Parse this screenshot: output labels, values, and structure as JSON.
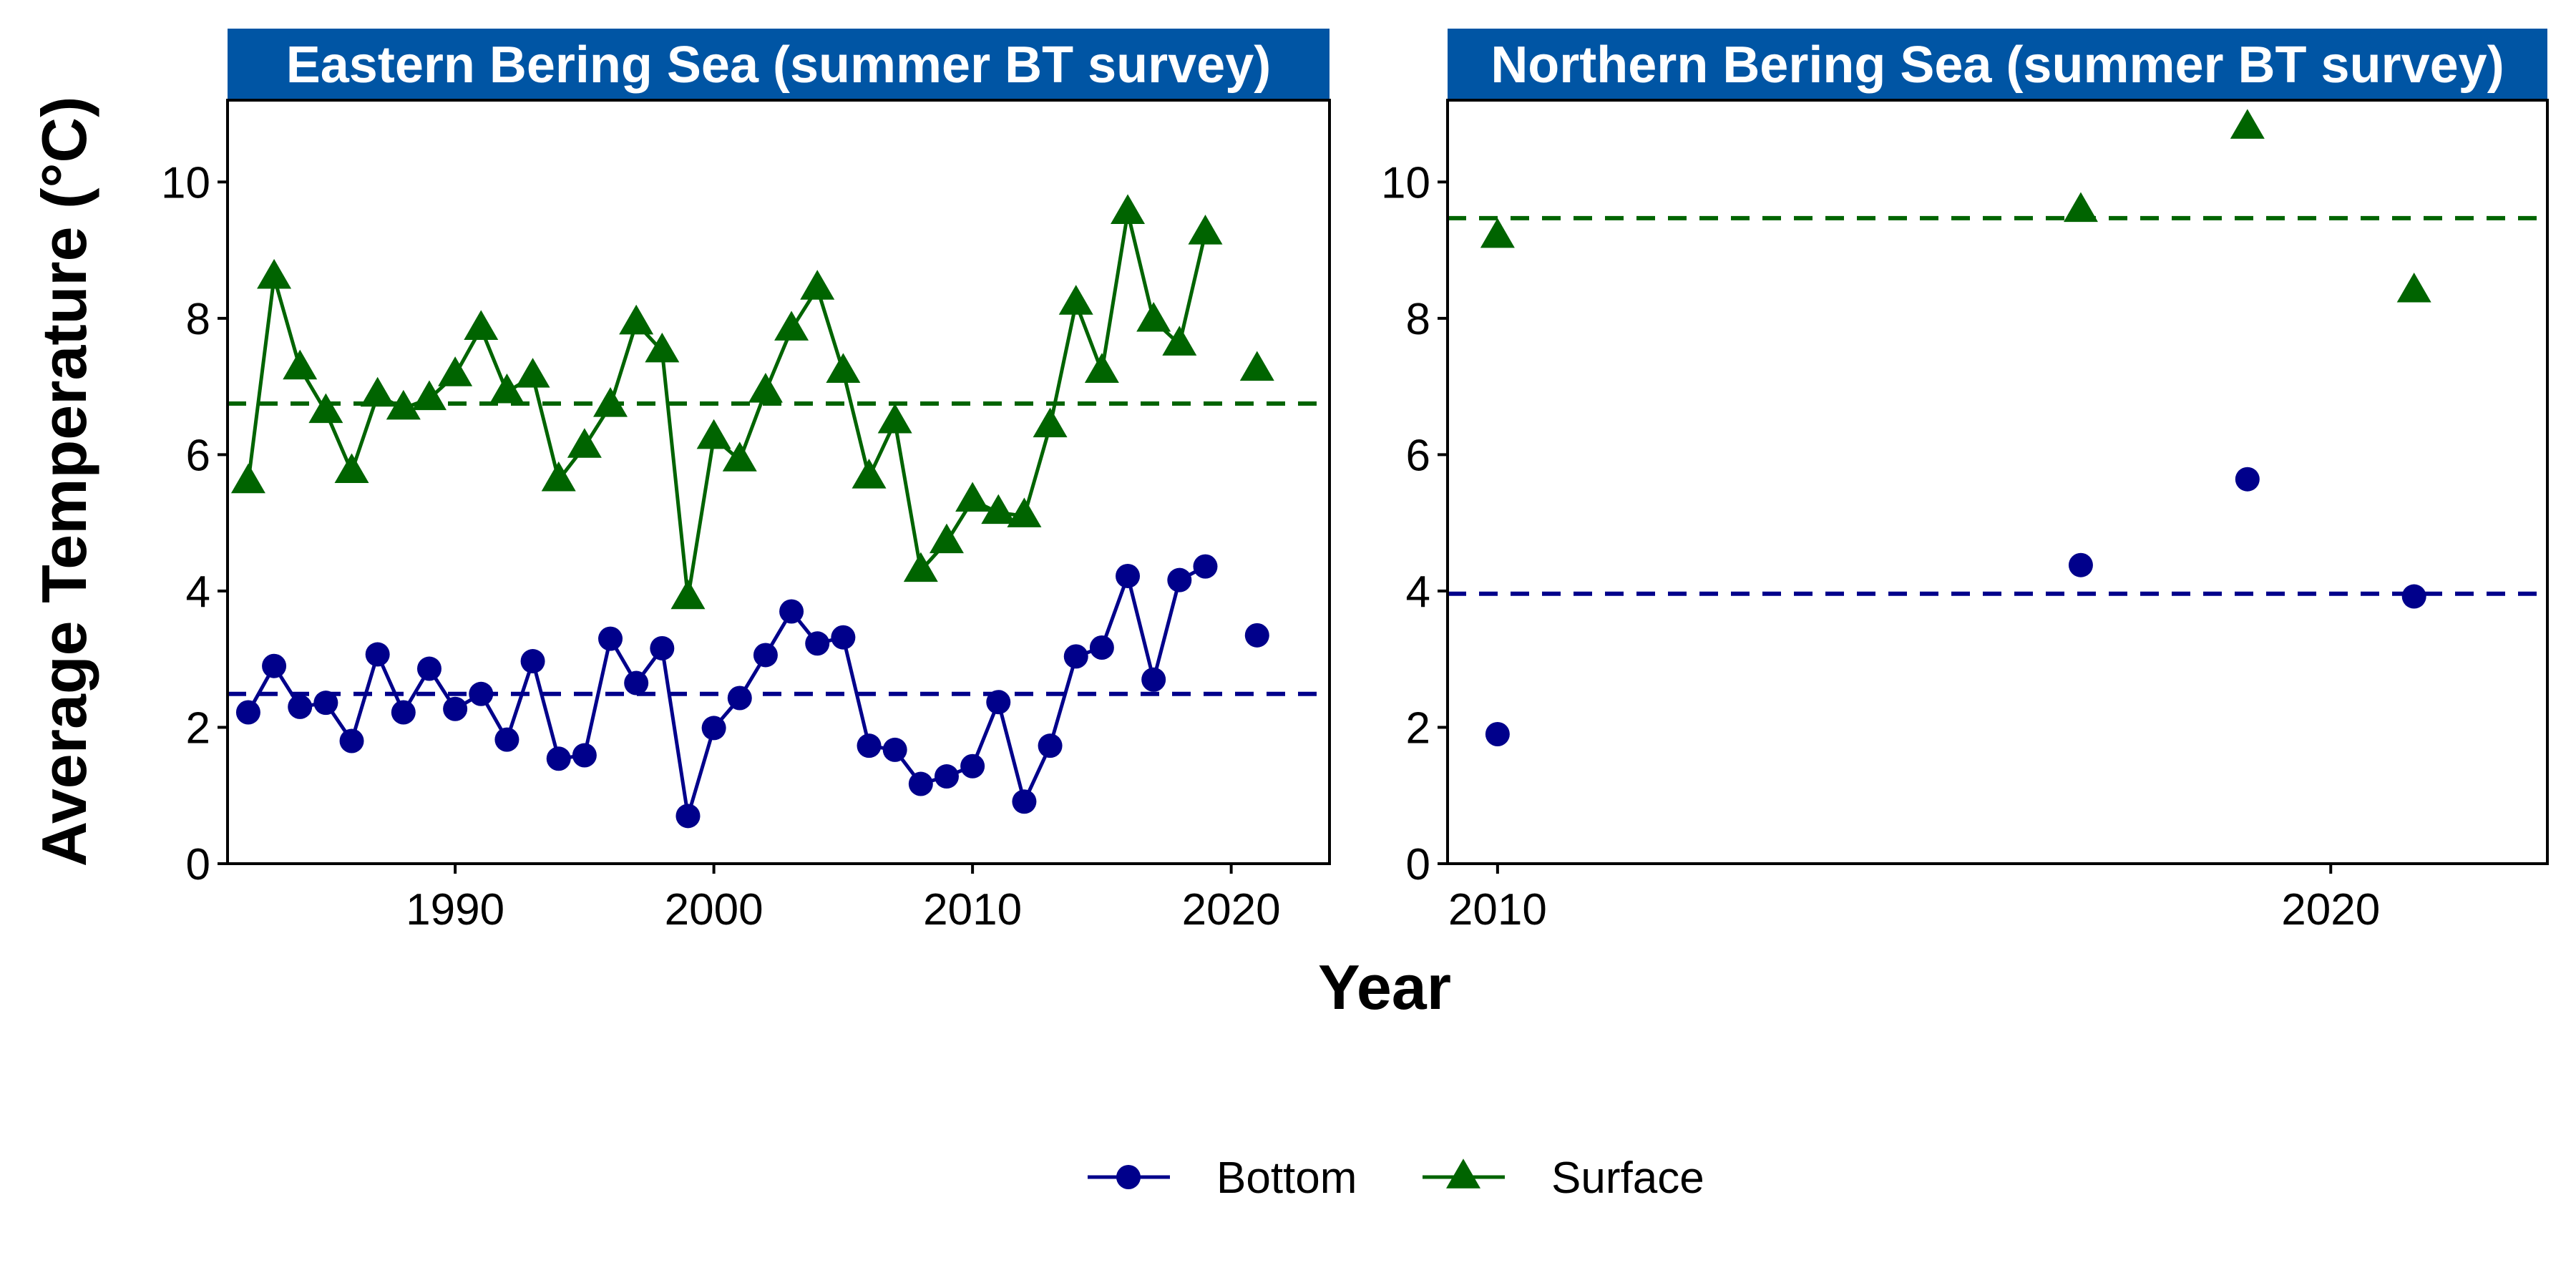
{
  "chart_data": {
    "type": "line",
    "shared": {
      "xlabel": "Year",
      "ylabel": "Average Temperature (°C)",
      "ylim": [
        0,
        11.2
      ],
      "yticks": [
        0,
        2,
        4,
        6,
        8,
        10
      ],
      "grid": false,
      "legend_position": "bottom",
      "legend": [
        {
          "name": "Bottom",
          "marker": "circle",
          "color": "#00008B"
        },
        {
          "name": "Surface",
          "marker": "triangle",
          "color": "#006400"
        }
      ]
    },
    "panels": [
      {
        "title": "Eastern Bering Sea (summer BT survey)",
        "xlim": [
          1981.2,
          2023.8
        ],
        "xticks": [
          1990,
          2000,
          2010,
          2020
        ],
        "connect_lines": true,
        "series": [
          {
            "name": "Bottom",
            "color": "#00008B",
            "marker": "circle",
            "x": [
              1982,
              1983,
              1984,
              1985,
              1986,
              1987,
              1988,
              1989,
              1990,
              1991,
              1992,
              1993,
              1994,
              1995,
              1996,
              1997,
              1998,
              1999,
              2000,
              2001,
              2002,
              2003,
              2004,
              2005,
              2006,
              2007,
              2008,
              2009,
              2010,
              2011,
              2012,
              2013,
              2014,
              2015,
              2016,
              2017,
              2018,
              2019,
              2021
            ],
            "y": [
              2.22,
              2.9,
              2.3,
              2.36,
              1.8,
              3.07,
              2.22,
              2.86,
              2.27,
              2.49,
              1.82,
              2.97,
              1.54,
              1.59,
              3.3,
              2.65,
              3.16,
              0.7,
              1.99,
              2.43,
              3.06,
              3.7,
              3.23,
              3.32,
              1.73,
              1.67,
              1.17,
              1.28,
              1.43,
              2.37,
              0.91,
              1.73,
              3.04,
              3.17,
              4.22,
              2.7,
              4.16,
              4.36,
              3.35
            ],
            "reference_mean": 2.49
          },
          {
            "name": "Surface",
            "color": "#006400",
            "marker": "triangle",
            "x": [
              1982,
              1983,
              1984,
              1985,
              1986,
              1987,
              1988,
              1989,
              1990,
              1991,
              1992,
              1993,
              1994,
              1995,
              1996,
              1997,
              1998,
              1999,
              2000,
              2001,
              2002,
              2003,
              2004,
              2005,
              2006,
              2007,
              2008,
              2009,
              2010,
              2011,
              2012,
              2013,
              2014,
              2015,
              2016,
              2017,
              2018,
              2019,
              2021
            ],
            "y": [
              5.6,
              8.6,
              7.27,
              6.63,
              5.75,
              6.87,
              6.68,
              6.82,
              7.17,
              7.85,
              6.92,
              7.15,
              5.63,
              6.12,
              6.72,
              7.93,
              7.52,
              3.9,
              6.25,
              5.92,
              6.93,
              7.84,
              8.44,
              7.22,
              5.67,
              6.48,
              4.3,
              4.72,
              5.33,
              5.15,
              5.1,
              6.42,
              8.22,
              7.22,
              9.55,
              7.97,
              7.62,
              9.25,
              7.25
            ],
            "reference_mean": 6.75
          }
        ]
      },
      {
        "title": "Northern Bering Sea (summer BT survey)",
        "xlim": [
          2009.4,
          2022.6
        ],
        "xticks": [
          2010,
          2020
        ],
        "connect_lines": false,
        "series": [
          {
            "name": "Bottom",
            "color": "#00008B",
            "marker": "circle",
            "x": [
              2010,
              2017,
              2019,
              2021
            ],
            "y": [
              1.9,
              4.38,
              5.64,
              3.92
            ],
            "reference_mean": 3.96
          },
          {
            "name": "Surface",
            "color": "#006400",
            "marker": "triangle",
            "x": [
              2010,
              2017,
              2019,
              2021
            ],
            "y": [
              9.2,
              9.58,
              10.8,
              8.4
            ],
            "reference_mean": 9.47
          }
        ]
      }
    ]
  }
}
